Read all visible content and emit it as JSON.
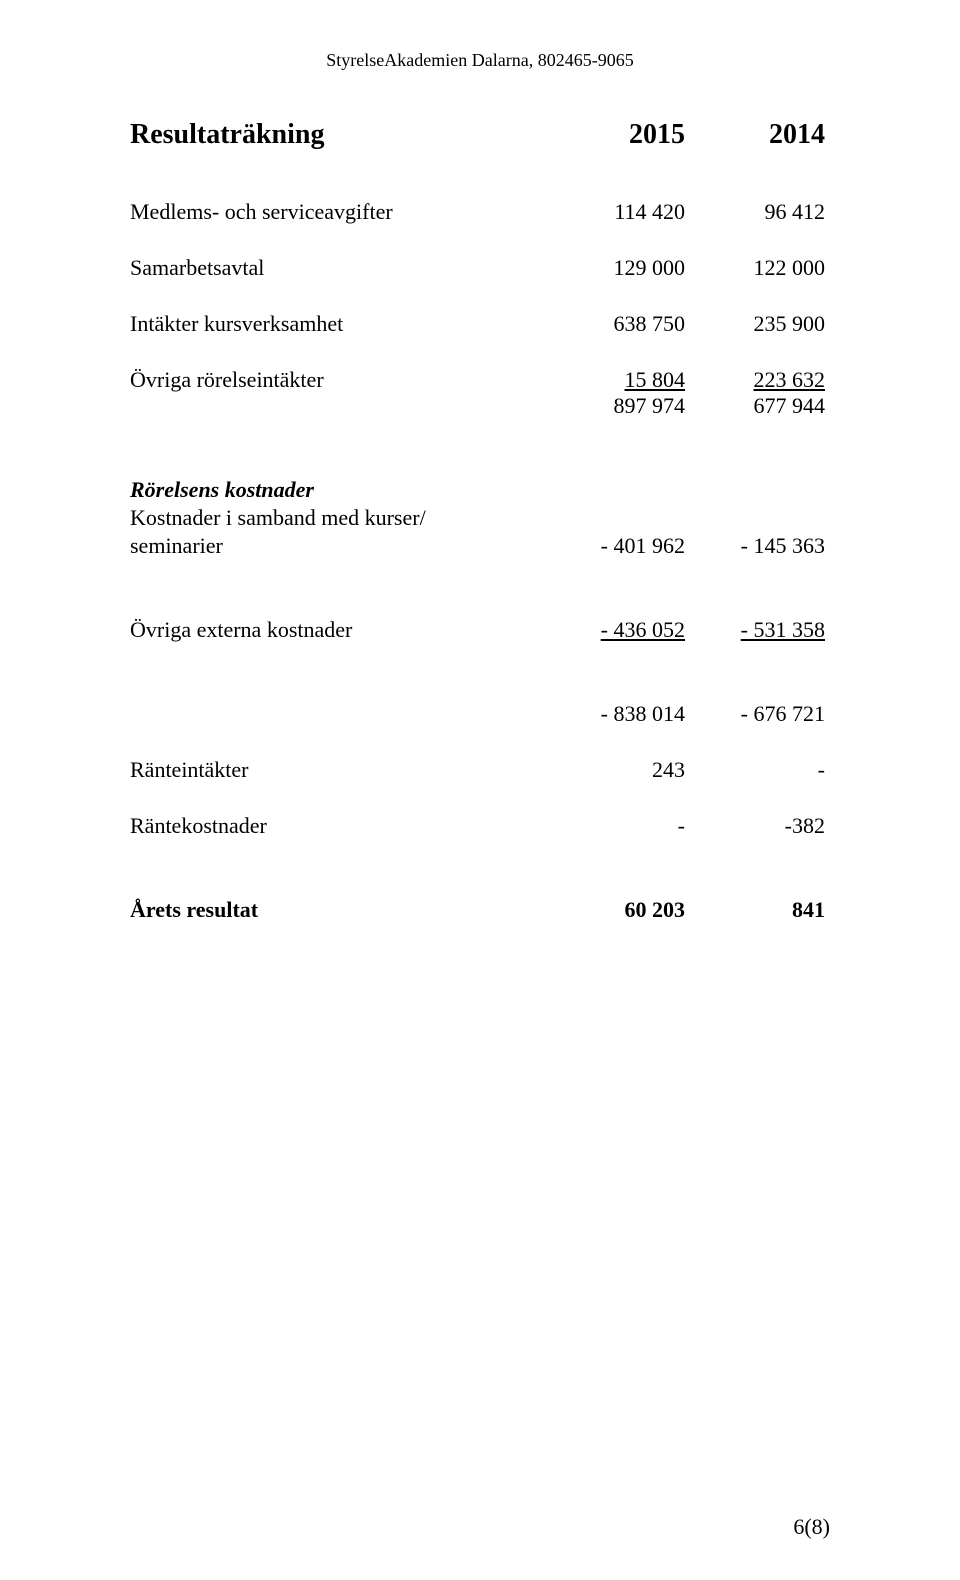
{
  "header": "StyrelseAkademien Dalarna, 802465-9065",
  "title": {
    "label": "Resultaträkning",
    "col1": "2015",
    "col2": "2014"
  },
  "rows": {
    "r1": {
      "label": "Medlems- och serviceavgifter",
      "col1": "114 420",
      "col2": "96 412"
    },
    "r2": {
      "label": "Samarbetsavtal",
      "col1": "129 000",
      "col2": "122 000"
    },
    "r3": {
      "label": "Intäkter kursverksamhet",
      "col1": "638 750",
      "col2": "235 900"
    },
    "r4": {
      "label": "Övriga rörelseintäkter",
      "col1": " 15 804",
      "col2": " 223 632 "
    },
    "r5": {
      "label": "",
      "col1": "897 974",
      "col2": "677 944"
    },
    "section": "Rörelsens kostnader",
    "r6a": "Kostnader i samband med kurser/",
    "r6": {
      "label": "seminarier",
      "col1": "- 401 962",
      "col2": "- 145 363"
    },
    "r7": {
      "label": "Övriga externa kostnader",
      "col1": "- 436 052",
      "col2": "- 531 358"
    },
    "r8": {
      "label": "",
      "col1": "- 838 014",
      "col2": "- 676 721"
    },
    "r9": {
      "label": "Ränteintäkter",
      "col1": "243",
      "col2": "-"
    },
    "r10": {
      "label": "Räntekostnader",
      "col1": "-",
      "col2": "-382"
    },
    "r11": {
      "label": "Årets resultat",
      "col1": "60 203",
      "col2": "841"
    }
  },
  "pageNum": "6(8)"
}
